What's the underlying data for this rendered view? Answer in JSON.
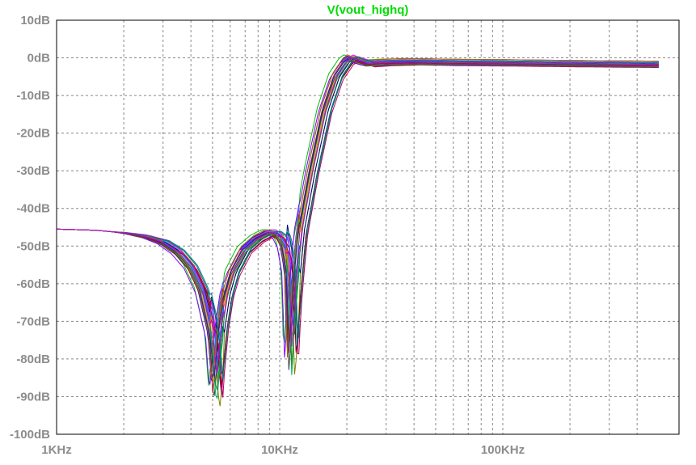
{
  "chart_data": {
    "type": "line",
    "title": "V(vout_highq)",
    "xlabel": "",
    "ylabel": "",
    "x_scale": "log",
    "xlim": [
      1000,
      500000
    ],
    "ylim": [
      -100,
      10
    ],
    "grid": true,
    "x_tick_labels": [
      {
        "value": 1000,
        "label": "1KHz"
      },
      {
        "value": 10000,
        "label": "10KHz"
      },
      {
        "value": 100000,
        "label": "100KHz"
      }
    ],
    "y_tick_labels": [
      {
        "value": 10,
        "label": "10dB"
      },
      {
        "value": 0,
        "label": "0dB"
      },
      {
        "value": -10,
        "label": "-10dB"
      },
      {
        "value": -20,
        "label": "-20dB"
      },
      {
        "value": -30,
        "label": "-30dB"
      },
      {
        "value": -40,
        "label": "-40dB"
      },
      {
        "value": -50,
        "label": "-50dB"
      },
      {
        "value": -60,
        "label": "-60dB"
      },
      {
        "value": -70,
        "label": "-70dB"
      },
      {
        "value": -80,
        "label": "-80dB"
      },
      {
        "value": -90,
        "label": "-90dB"
      },
      {
        "value": -100,
        "label": "-100dB"
      }
    ],
    "series_colors": [
      "#00c000",
      "#0000ff",
      "#ff0000",
      "#00a0a0",
      "#a000a0",
      "#808000",
      "#000080",
      "#800000",
      "#008080",
      "#ff00ff",
      "#00ff00",
      "#404040",
      "#ff8000",
      "#0080ff",
      "#8000ff",
      "#00b060",
      "#c00060",
      "#6060ff",
      "#209020",
      "#902020",
      "#2020a0",
      "#a07000",
      "#007070",
      "#d000d0"
    ],
    "title_color": "#00dd00",
    "grid_color": "#888888",
    "nominal_x": [
      1000,
      1500,
      2000,
      2500,
      3000,
      3500,
      4000,
      4500,
      5000,
      5200,
      5500,
      5800,
      6200,
      7000,
      8000,
      9000,
      9500,
      10000,
      10500,
      11000,
      11300,
      11800,
      12500,
      14000,
      16000,
      18000,
      20000,
      21000,
      22000,
      25000,
      30000,
      40000,
      60000,
      100000,
      200000,
      500000
    ],
    "nominal_y": [
      -45.5,
      -45.8,
      -46.5,
      -47.5,
      -49,
      -51.5,
      -55.5,
      -62,
      -74,
      -88,
      -72,
      -63,
      -57,
      -51,
      -48,
      -46.5,
      -46.5,
      -47.5,
      -50,
      -57,
      -80,
      -62,
      -46,
      -30,
      -14,
      -5,
      -1,
      0,
      -0.5,
      -1.5,
      -1.2,
      -1,
      -1.2,
      -1.3,
      -1.5,
      -1.7
    ],
    "monte_carlo_runs": 24
  }
}
